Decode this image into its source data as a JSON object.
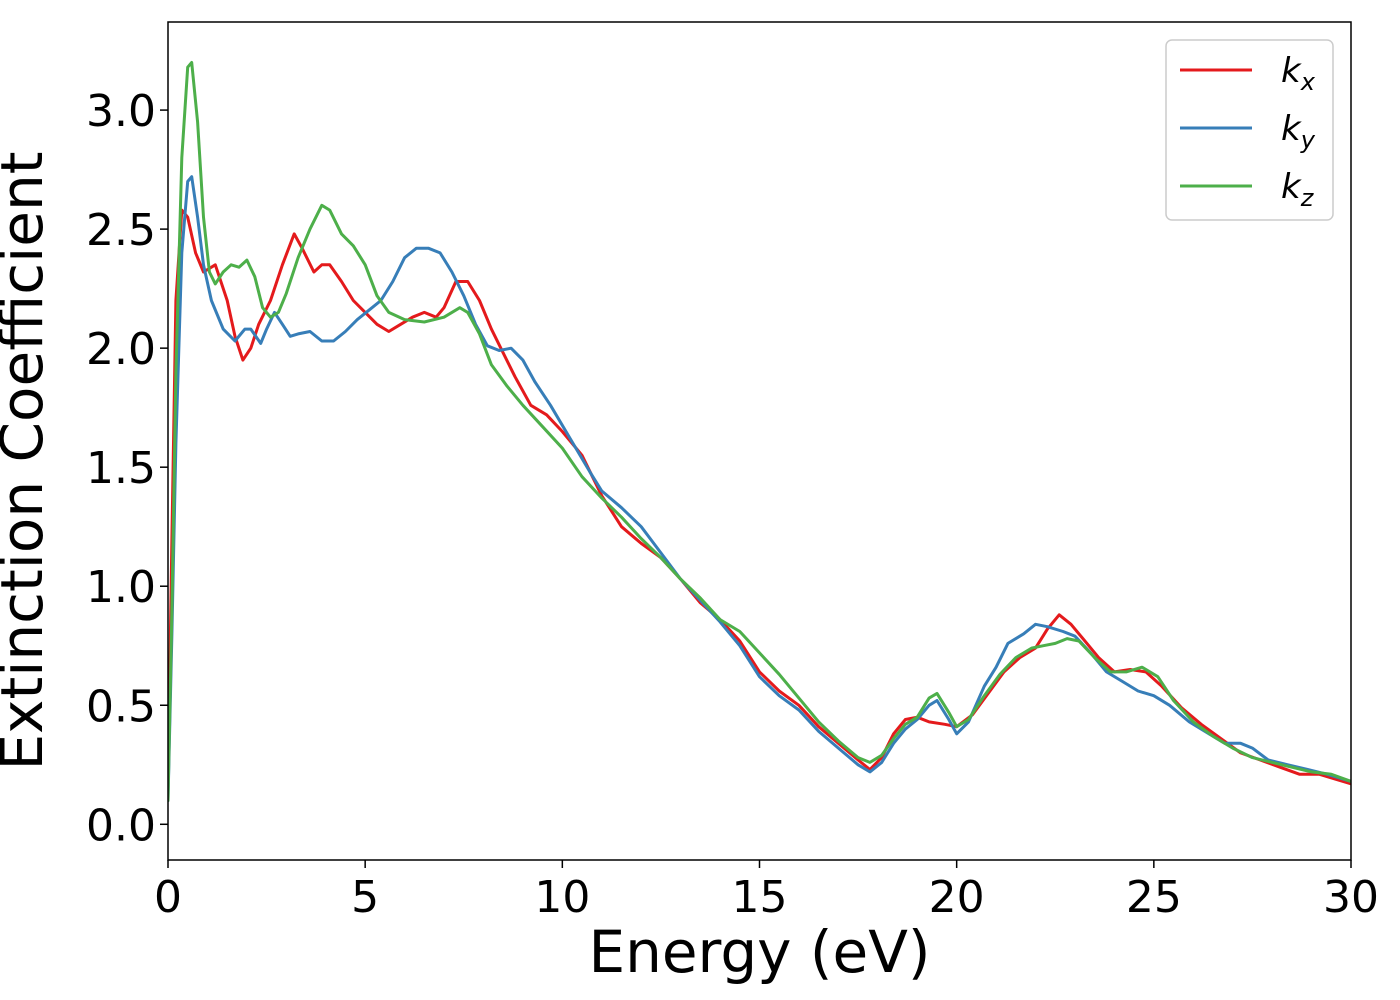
{
  "chart_data": {
    "type": "line",
    "xlabel": "Energy (eV)",
    "ylabel": "Extinction Coefficient",
    "xlim": [
      0,
      30
    ],
    "ylim": [
      -0.15,
      3.37
    ],
    "xticks": [
      0,
      5,
      10,
      15,
      20,
      25,
      30
    ],
    "xtick_labels": [
      "0",
      "5",
      "10",
      "15",
      "20",
      "25",
      "30"
    ],
    "yticks": [
      0.0,
      0.5,
      1.0,
      1.5,
      2.0,
      2.5,
      3.0
    ],
    "ytick_labels": [
      "0.0",
      "0.5",
      "1.0",
      "1.5",
      "2.0",
      "2.5",
      "3.0"
    ],
    "grid": false,
    "legend_position": "top-right",
    "series": [
      {
        "name": "k",
        "subscript": "x",
        "color": "#e41a1c",
        "points": [
          [
            0,
            0.15
          ],
          [
            0.1,
            1.2
          ],
          [
            0.2,
            2.2
          ],
          [
            0.35,
            2.58
          ],
          [
            0.5,
            2.55
          ],
          [
            0.7,
            2.4
          ],
          [
            0.9,
            2.32
          ],
          [
            1.2,
            2.35
          ],
          [
            1.5,
            2.2
          ],
          [
            1.7,
            2.05
          ],
          [
            1.9,
            1.95
          ],
          [
            2.1,
            2.0
          ],
          [
            2.3,
            2.1
          ],
          [
            2.6,
            2.2
          ],
          [
            2.9,
            2.35
          ],
          [
            3.2,
            2.48
          ],
          [
            3.4,
            2.42
          ],
          [
            3.7,
            2.32
          ],
          [
            3.9,
            2.35
          ],
          [
            4.1,
            2.35
          ],
          [
            4.4,
            2.28
          ],
          [
            4.7,
            2.2
          ],
          [
            5.0,
            2.15
          ],
          [
            5.3,
            2.1
          ],
          [
            5.6,
            2.07
          ],
          [
            5.9,
            2.1
          ],
          [
            6.2,
            2.13
          ],
          [
            6.5,
            2.15
          ],
          [
            6.8,
            2.13
          ],
          [
            7.0,
            2.17
          ],
          [
            7.3,
            2.28
          ],
          [
            7.6,
            2.28
          ],
          [
            7.9,
            2.2
          ],
          [
            8.2,
            2.08
          ],
          [
            8.5,
            1.98
          ],
          [
            8.8,
            1.88
          ],
          [
            9.2,
            1.76
          ],
          [
            9.6,
            1.72
          ],
          [
            10.0,
            1.65
          ],
          [
            10.5,
            1.55
          ],
          [
            11.0,
            1.38
          ],
          [
            11.5,
            1.25
          ],
          [
            12.0,
            1.18
          ],
          [
            12.5,
            1.12
          ],
          [
            13.0,
            1.03
          ],
          [
            13.5,
            0.93
          ],
          [
            14.0,
            0.86
          ],
          [
            14.5,
            0.77
          ],
          [
            15.0,
            0.64
          ],
          [
            15.5,
            0.56
          ],
          [
            16.0,
            0.5
          ],
          [
            16.5,
            0.41
          ],
          [
            17.0,
            0.34
          ],
          [
            17.5,
            0.27
          ],
          [
            17.8,
            0.23
          ],
          [
            18.1,
            0.28
          ],
          [
            18.4,
            0.38
          ],
          [
            18.7,
            0.44
          ],
          [
            19.0,
            0.45
          ],
          [
            19.3,
            0.43
          ],
          [
            19.7,
            0.42
          ],
          [
            20.0,
            0.41
          ],
          [
            20.4,
            0.46
          ],
          [
            20.8,
            0.55
          ],
          [
            21.2,
            0.64
          ],
          [
            21.6,
            0.7
          ],
          [
            22.0,
            0.74
          ],
          [
            22.3,
            0.82
          ],
          [
            22.6,
            0.88
          ],
          [
            22.9,
            0.84
          ],
          [
            23.2,
            0.78
          ],
          [
            23.6,
            0.7
          ],
          [
            24.0,
            0.64
          ],
          [
            24.4,
            0.65
          ],
          [
            24.8,
            0.64
          ],
          [
            25.2,
            0.58
          ],
          [
            25.7,
            0.49
          ],
          [
            26.2,
            0.42
          ],
          [
            26.7,
            0.36
          ],
          [
            27.2,
            0.3
          ],
          [
            27.7,
            0.27
          ],
          [
            28.2,
            0.24
          ],
          [
            28.7,
            0.21
          ],
          [
            29.2,
            0.21
          ],
          [
            29.6,
            0.19
          ],
          [
            30.0,
            0.17
          ]
        ]
      },
      {
        "name": "k",
        "subscript": "y",
        "color": "#377eb8",
        "points": [
          [
            0,
            0.1
          ],
          [
            0.1,
            0.8
          ],
          [
            0.2,
            1.6
          ],
          [
            0.35,
            2.4
          ],
          [
            0.5,
            2.7
          ],
          [
            0.6,
            2.72
          ],
          [
            0.75,
            2.55
          ],
          [
            0.9,
            2.35
          ],
          [
            1.1,
            2.2
          ],
          [
            1.4,
            2.08
          ],
          [
            1.7,
            2.03
          ],
          [
            1.95,
            2.08
          ],
          [
            2.1,
            2.08
          ],
          [
            2.35,
            2.02
          ],
          [
            2.5,
            2.08
          ],
          [
            2.7,
            2.15
          ],
          [
            2.9,
            2.1
          ],
          [
            3.1,
            2.05
          ],
          [
            3.3,
            2.06
          ],
          [
            3.6,
            2.07
          ],
          [
            3.9,
            2.03
          ],
          [
            4.2,
            2.03
          ],
          [
            4.5,
            2.07
          ],
          [
            4.8,
            2.12
          ],
          [
            5.1,
            2.16
          ],
          [
            5.4,
            2.2
          ],
          [
            5.7,
            2.28
          ],
          [
            6.0,
            2.38
          ],
          [
            6.3,
            2.42
          ],
          [
            6.6,
            2.42
          ],
          [
            6.9,
            2.4
          ],
          [
            7.2,
            2.32
          ],
          [
            7.5,
            2.22
          ],
          [
            7.8,
            2.1
          ],
          [
            8.1,
            2.01
          ],
          [
            8.4,
            1.99
          ],
          [
            8.7,
            2.0
          ],
          [
            9.0,
            1.95
          ],
          [
            9.3,
            1.86
          ],
          [
            9.7,
            1.76
          ],
          [
            10.2,
            1.62
          ],
          [
            10.7,
            1.48
          ],
          [
            11.0,
            1.4
          ],
          [
            11.5,
            1.33
          ],
          [
            12.0,
            1.25
          ],
          [
            12.5,
            1.14
          ],
          [
            13.0,
            1.03
          ],
          [
            13.5,
            0.94
          ],
          [
            14.0,
            0.85
          ],
          [
            14.5,
            0.75
          ],
          [
            15.0,
            0.62
          ],
          [
            15.5,
            0.54
          ],
          [
            16.0,
            0.48
          ],
          [
            16.5,
            0.39
          ],
          [
            17.0,
            0.32
          ],
          [
            17.5,
            0.25
          ],
          [
            17.8,
            0.22
          ],
          [
            18.1,
            0.26
          ],
          [
            18.4,
            0.34
          ],
          [
            18.7,
            0.4
          ],
          [
            19.0,
            0.44
          ],
          [
            19.3,
            0.5
          ],
          [
            19.5,
            0.52
          ],
          [
            19.8,
            0.44
          ],
          [
            20.0,
            0.38
          ],
          [
            20.3,
            0.43
          ],
          [
            20.7,
            0.58
          ],
          [
            21.0,
            0.66
          ],
          [
            21.3,
            0.76
          ],
          [
            21.7,
            0.8
          ],
          [
            22.0,
            0.84
          ],
          [
            22.3,
            0.83
          ],
          [
            22.7,
            0.81
          ],
          [
            23.0,
            0.79
          ],
          [
            23.4,
            0.72
          ],
          [
            23.8,
            0.64
          ],
          [
            24.2,
            0.6
          ],
          [
            24.6,
            0.56
          ],
          [
            25.0,
            0.54
          ],
          [
            25.4,
            0.5
          ],
          [
            25.9,
            0.43
          ],
          [
            26.4,
            0.38
          ],
          [
            26.8,
            0.34
          ],
          [
            27.2,
            0.34
          ],
          [
            27.5,
            0.32
          ],
          [
            27.9,
            0.27
          ],
          [
            28.4,
            0.25
          ],
          [
            28.9,
            0.23
          ],
          [
            29.4,
            0.21
          ],
          [
            30.0,
            0.18
          ]
        ]
      },
      {
        "name": "k",
        "subscript": "z",
        "color": "#4daf4a",
        "points": [
          [
            0,
            0.1
          ],
          [
            0.1,
            0.9
          ],
          [
            0.2,
            1.9
          ],
          [
            0.35,
            2.8
          ],
          [
            0.5,
            3.18
          ],
          [
            0.6,
            3.2
          ],
          [
            0.75,
            2.95
          ],
          [
            0.9,
            2.55
          ],
          [
            1.05,
            2.32
          ],
          [
            1.2,
            2.27
          ],
          [
            1.4,
            2.32
          ],
          [
            1.6,
            2.35
          ],
          [
            1.8,
            2.34
          ],
          [
            2.0,
            2.37
          ],
          [
            2.2,
            2.3
          ],
          [
            2.4,
            2.17
          ],
          [
            2.6,
            2.13
          ],
          [
            2.8,
            2.15
          ],
          [
            3.0,
            2.23
          ],
          [
            3.3,
            2.38
          ],
          [
            3.6,
            2.5
          ],
          [
            3.9,
            2.6
          ],
          [
            4.1,
            2.58
          ],
          [
            4.4,
            2.48
          ],
          [
            4.7,
            2.43
          ],
          [
            5.0,
            2.35
          ],
          [
            5.3,
            2.22
          ],
          [
            5.6,
            2.15
          ],
          [
            6.0,
            2.12
          ],
          [
            6.5,
            2.11
          ],
          [
            7.0,
            2.13
          ],
          [
            7.4,
            2.17
          ],
          [
            7.6,
            2.15
          ],
          [
            7.9,
            2.06
          ],
          [
            8.2,
            1.93
          ],
          [
            8.6,
            1.84
          ],
          [
            9.0,
            1.76
          ],
          [
            9.5,
            1.67
          ],
          [
            10.0,
            1.58
          ],
          [
            10.5,
            1.46
          ],
          [
            11.0,
            1.37
          ],
          [
            11.5,
            1.29
          ],
          [
            12.0,
            1.2
          ],
          [
            12.5,
            1.12
          ],
          [
            13.0,
            1.03
          ],
          [
            13.5,
            0.95
          ],
          [
            14.0,
            0.86
          ],
          [
            14.5,
            0.81
          ],
          [
            15.0,
            0.72
          ],
          [
            15.5,
            0.63
          ],
          [
            16.0,
            0.53
          ],
          [
            16.5,
            0.43
          ],
          [
            17.0,
            0.35
          ],
          [
            17.5,
            0.28
          ],
          [
            17.8,
            0.26
          ],
          [
            18.1,
            0.29
          ],
          [
            18.4,
            0.36
          ],
          [
            18.7,
            0.42
          ],
          [
            19.0,
            0.45
          ],
          [
            19.3,
            0.53
          ],
          [
            19.5,
            0.55
          ],
          [
            19.8,
            0.47
          ],
          [
            20.0,
            0.41
          ],
          [
            20.3,
            0.44
          ],
          [
            20.7,
            0.54
          ],
          [
            21.1,
            0.63
          ],
          [
            21.5,
            0.7
          ],
          [
            21.9,
            0.74
          ],
          [
            22.2,
            0.75
          ],
          [
            22.5,
            0.76
          ],
          [
            22.8,
            0.78
          ],
          [
            23.1,
            0.77
          ],
          [
            23.5,
            0.7
          ],
          [
            23.9,
            0.64
          ],
          [
            24.3,
            0.64
          ],
          [
            24.7,
            0.66
          ],
          [
            25.1,
            0.62
          ],
          [
            25.5,
            0.52
          ],
          [
            26.0,
            0.43
          ],
          [
            26.5,
            0.37
          ],
          [
            27.0,
            0.32
          ],
          [
            27.5,
            0.28
          ],
          [
            28.0,
            0.26
          ],
          [
            28.5,
            0.24
          ],
          [
            29.0,
            0.22
          ],
          [
            29.5,
            0.21
          ],
          [
            30.0,
            0.18
          ]
        ]
      }
    ]
  }
}
